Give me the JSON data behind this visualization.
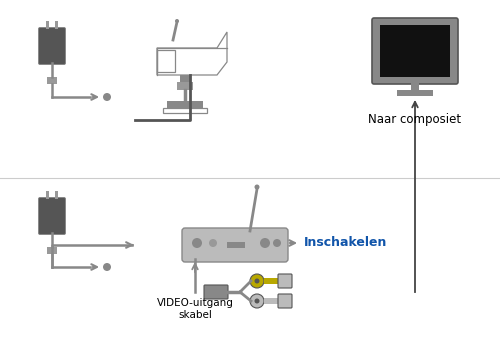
{
  "bg_color": "#ffffff",
  "text_color": "#000000",
  "label_inschakelen": "Inschakelen",
  "label_naar_composiet": "Naar composiet",
  "label_video_uitgang": "VIDEO-uitgang\nskabel",
  "device_gray": "#888888",
  "device_light": "#bbbbbb",
  "device_dark": "#555555",
  "device_med": "#999999",
  "arrow_color": "#666666",
  "line_color": "#444444",
  "tv_screen": "#111111",
  "tv_body": "#888888",
  "cable_rca_yellow": "#b8a800",
  "cable_rca_green": "#88aa00",
  "cable_white": "#dddddd"
}
